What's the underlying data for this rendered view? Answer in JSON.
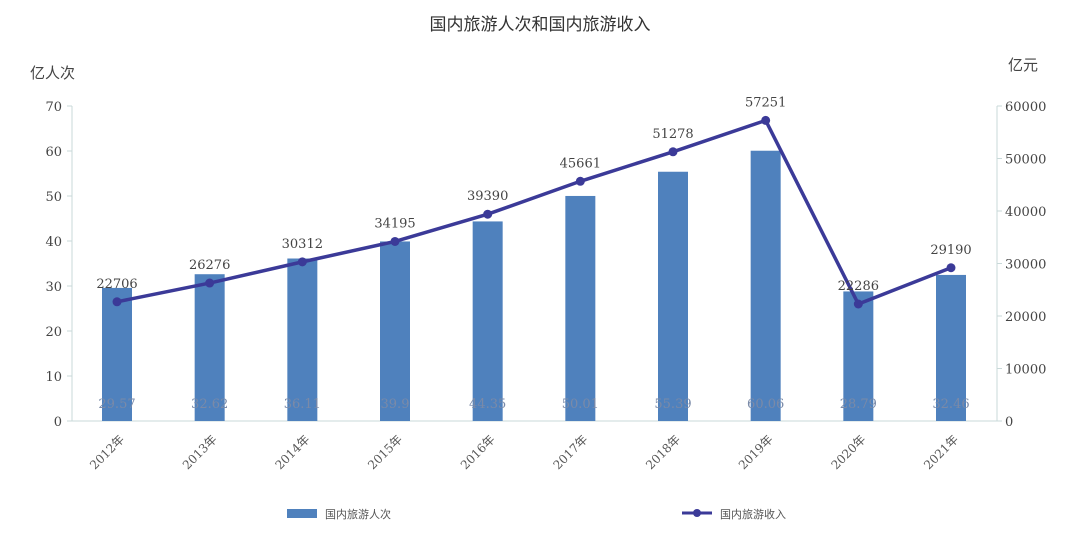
{
  "chart_data": {
    "type": "bar+line",
    "title": "国内旅游人次和国内旅游收入",
    "ylabel_left": "亿人次",
    "ylabel_right": "亿元",
    "categories": [
      "2012年",
      "2013年",
      "2014年",
      "2015年",
      "2016年",
      "2017年",
      "2018年",
      "2019年",
      "2020年",
      "2021年"
    ],
    "ylim_left": [
      0,
      70
    ],
    "yticks_left": [
      0,
      10,
      20,
      30,
      40,
      50,
      60,
      70
    ],
    "ylim_right": [
      0,
      60000
    ],
    "yticks_right": [
      0,
      10000,
      20000,
      30000,
      40000,
      50000,
      60000
    ],
    "grid": false,
    "legend_placement": "bottom",
    "series": [
      {
        "name": "国内旅游人次",
        "type": "bar",
        "axis": "left",
        "color": "#4f81bd",
        "values": [
          29.57,
          32.62,
          36.11,
          39.9,
          44.35,
          50.01,
          55.39,
          60.06,
          28.79,
          32.46
        ],
        "labels": [
          "29.57",
          "32.62",
          "36.11",
          "39.9",
          "44.35",
          "50.01",
          "55.39",
          "60.06",
          "28.79",
          "32.46"
        ]
      },
      {
        "name": "国内旅游收入",
        "type": "line",
        "axis": "right",
        "color": "#3b3a98",
        "values": [
          22706,
          26276,
          30312,
          34195,
          39390,
          45661,
          51278,
          57251,
          22286,
          29190
        ],
        "labels": [
          "22706",
          "26276",
          "30312",
          "34195",
          "39390",
          "45661",
          "51278",
          "57251",
          "22286",
          "29190"
        ]
      }
    ]
  }
}
